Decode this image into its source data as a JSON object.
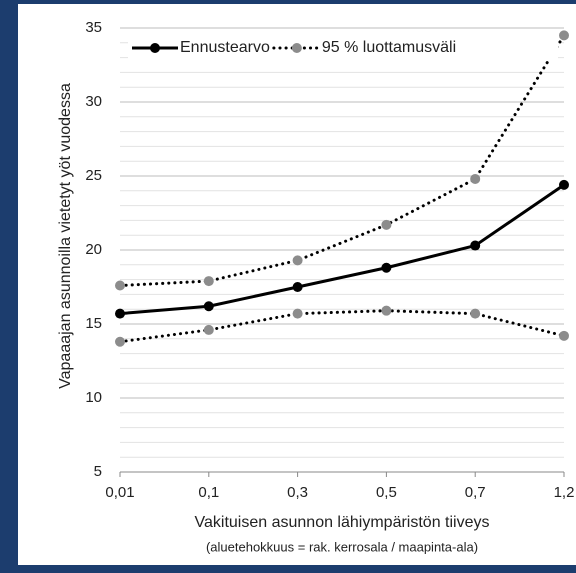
{
  "chart_data": {
    "type": "line",
    "y_label": "Vapaaajan asunnoilla vietetyt yöt vuodessa",
    "x_label": "Vakituisen asunnon lähiympäristön tiiveys",
    "x_sublabel": "(aluetehokkuus = rak. kerrosala / maapinta-ala)",
    "categories": [
      "0,01",
      "0,1",
      "0,3",
      "0,5",
      "0,7",
      "1,2"
    ],
    "series": [
      {
        "name": "Ennustearvo",
        "color": "#000000",
        "marker_color": "#000000",
        "dashed": false,
        "values": [
          15.7,
          16.2,
          17.5,
          18.8,
          20.3,
          24.4
        ]
      },
      {
        "name": "95 % luottamusväli",
        "color": "#000000",
        "marker_color": "#8c8c8c",
        "dashed": true,
        "values": [
          17.6,
          17.9,
          19.3,
          21.7,
          24.8,
          34.5
        ]
      },
      {
        "color": "#000000",
        "marker_color": "#8c8c8c",
        "dashed": true,
        "values": [
          13.8,
          14.6,
          15.7,
          15.9,
          15.7,
          14.2
        ]
      }
    ],
    "ylim": [
      5,
      35
    ],
    "yticks": [
      5,
      10,
      15,
      20,
      25,
      30,
      35
    ],
    "grid": true,
    "minor_grid": 1,
    "legend": "top"
  }
}
